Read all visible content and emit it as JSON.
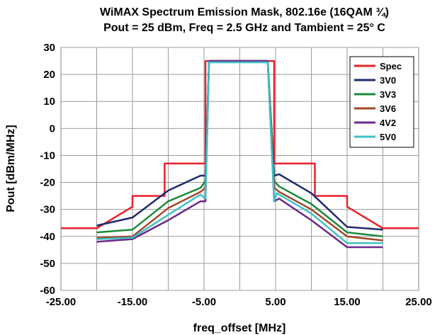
{
  "chart_data": {
    "type": "line",
    "title": "WiMAX Spectrum Emission Mask, 802.16e (16QAM ¾)",
    "subtitle": "Pout = 25 dBm, Freq = 2.5 GHz and Tambient = 25° C",
    "xlabel": "freq_offset [MHz]",
    "ylabel": "Pout [dBm/MHz]",
    "xlim": [
      -25,
      25
    ],
    "ylim": [
      -60,
      30
    ],
    "xticks": [
      -25,
      -15,
      -5,
      5,
      15,
      25
    ],
    "xtick_labels": [
      "-25.00",
      "-15.00",
      "-5.00",
      "5.00",
      "15.00",
      "25.00"
    ],
    "yticks": [
      30,
      20,
      10,
      0,
      -10,
      -20,
      -30,
      -40,
      -50,
      -60
    ],
    "ytick_labels": [
      "30",
      "20",
      "10",
      "0",
      "-10",
      "-20",
      "-30",
      "-40",
      "-50",
      "-60"
    ],
    "grid": true,
    "legend_position": "top-right",
    "series": [
      {
        "name": "Spec",
        "color": "#e8202a",
        "x": [
          -25,
          -20,
          -15,
          -15,
          -10.5,
          -10.5,
          -5.2,
          -4.8,
          -4.8,
          4.8,
          4.8,
          5.2,
          10.5,
          10.5,
          15,
          15,
          20,
          25
        ],
        "y": [
          -37,
          -37,
          -29,
          -25,
          -25,
          -13,
          -13,
          -13,
          25,
          25,
          -13,
          -13,
          -13,
          -25,
          -25,
          -29,
          -37,
          -37
        ]
      },
      {
        "name": "3V0",
        "color": "#1f2a6e",
        "x": [
          -20,
          -15,
          -10,
          -5.5,
          -4.8,
          -4.3,
          3.9,
          4.8,
          5.5,
          10,
          15,
          20
        ],
        "y": [
          -36,
          -33,
          -23,
          -17.5,
          -17.5,
          25,
          25,
          -17.5,
          -17,
          -24,
          -36.5,
          -37.5
        ]
      },
      {
        "name": "3V3",
        "color": "#1a8a3a",
        "x": [
          -20,
          -15,
          -10,
          -5.5,
          -4.8,
          -4.3,
          3.9,
          4.8,
          5.5,
          10,
          15,
          20
        ],
        "y": [
          -38.5,
          -37.5,
          -27,
          -22,
          -19.5,
          25,
          25,
          -19.5,
          -21.5,
          -28,
          -38.5,
          -40
        ]
      },
      {
        "name": "3V6",
        "color": "#a0472a",
        "x": [
          -20,
          -15,
          -10,
          -5.5,
          -4.8,
          -4.3,
          3.9,
          4.8,
          5.5,
          10,
          15,
          20
        ],
        "y": [
          -40.5,
          -40,
          -29.5,
          -23.5,
          -22,
          25,
          25,
          -22,
          -23.5,
          -30,
          -40,
          -41.5
        ]
      },
      {
        "name": "4V2",
        "color": "#6a2a8a",
        "x": [
          -20,
          -15,
          -10,
          -5.5,
          -4.8,
          -4.3,
          3.9,
          4.8,
          5.5,
          10,
          15,
          20
        ],
        "y": [
          -42,
          -41,
          -34,
          -27,
          -27,
          25,
          25,
          -27,
          -26,
          -34,
          -44,
          -44
        ]
      },
      {
        "name": "5V0",
        "color": "#3fc0c8",
        "x": [
          -20,
          -15,
          -10,
          -5.5,
          -4.8,
          -4.3,
          3.9,
          4.8,
          5.2,
          10,
          15,
          20
        ],
        "y": [
          -41,
          -40.5,
          -32,
          -24.5,
          -26,
          24.5,
          24.5,
          -27,
          -24,
          -31.5,
          -42.5,
          -42.5
        ]
      }
    ]
  }
}
